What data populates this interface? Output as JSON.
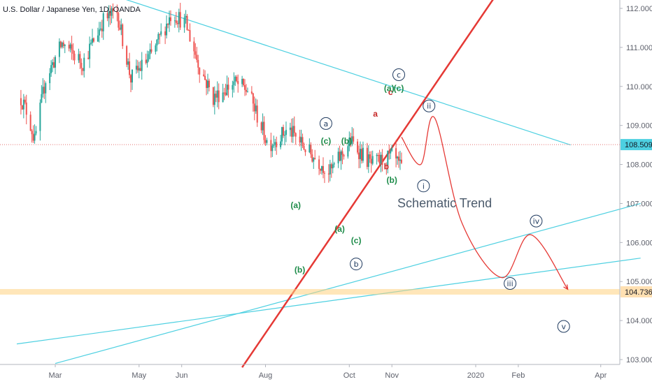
{
  "chart_data": {
    "type": "candlestick",
    "title": "U.S. Dollar / Japanese Yen, 1D, OANDA",
    "x_axis": {
      "labels": [
        "Mar",
        "May",
        "Jun",
        "Aug",
        "Oct",
        "Nov",
        "2020",
        "Feb",
        "Apr"
      ],
      "label_dates": [
        "2019-03-01",
        "2019-05-01",
        "2019-06-01",
        "2019-08-01",
        "2019-10-01",
        "2019-11-01",
        "2020-01-01",
        "2020-02-01",
        "2020-04-01"
      ]
    },
    "y_axis": {
      "min": 103.0,
      "max": 112.0,
      "ticks": [
        "112.000",
        "111.000",
        "110.000",
        "109.000",
        "108.000",
        "107.000",
        "106.000",
        "105.000",
        "104.000",
        "103.000"
      ]
    },
    "price_labels": [
      {
        "value": 108.509,
        "text": "108.509",
        "color": "#4dd0e1",
        "line_color": "#e57373"
      },
      {
        "value": 104.736,
        "text": "104.736",
        "color": "#ffe0b2",
        "line_color": "#ffd180"
      }
    ],
    "candles": {
      "start_date": "2019-02-04",
      "end_date": "2019-11-08",
      "path": [
        [
          0,
          109.7
        ],
        [
          5,
          109.3
        ],
        [
          10,
          108.6
        ],
        [
          18,
          110.2
        ],
        [
          30,
          111.1
        ],
        [
          45,
          110.6
        ],
        [
          60,
          111.7
        ],
        [
          70,
          111.9
        ],
        [
          80,
          110.2
        ],
        [
          95,
          110.8
        ],
        [
          110,
          111.9
        ],
        [
          120,
          111.6
        ],
        [
          130,
          110.5
        ],
        [
          140,
          109.7
        ],
        [
          155,
          110.1
        ],
        [
          165,
          109.9
        ],
        [
          180,
          108.5
        ],
        [
          195,
          108.9
        ],
        [
          210,
          108.3
        ],
        [
          225,
          107.8
        ],
        [
          240,
          108.6
        ],
        [
          255,
          108.0
        ],
        [
          270,
          108.2
        ],
        [
          285,
          107.5
        ],
        [
          300,
          108.9
        ],
        [
          315,
          108.6
        ],
        [
          330,
          108.6
        ],
        [
          345,
          108.1
        ],
        [
          355,
          108.7
        ],
        [
          370,
          109.2
        ],
        [
          380,
          106.8
        ],
        [
          390,
          105.7
        ],
        [
          400,
          105.6
        ],
        [
          410,
          106.3
        ],
        [
          420,
          106.8
        ],
        [
          430,
          106.0
        ],
        [
          438,
          106.5
        ],
        [
          445,
          107.3
        ],
        [
          455,
          107.8
        ],
        [
          465,
          108.3
        ],
        [
          475,
          108.5
        ],
        [
          482,
          107.6
        ],
        [
          490,
          107.2
        ],
        [
          497,
          108.3
        ],
        [
          505,
          106.9
        ],
        [
          515,
          107.7
        ],
        [
          525,
          108.6
        ],
        [
          535,
          108.6
        ],
        [
          545,
          108.8
        ],
        [
          550,
          108.6
        ],
        [
          558,
          108.4
        ],
        [
          565,
          109.3
        ],
        [
          575,
          109.1
        ],
        [
          585,
          108.6
        ]
      ]
    },
    "lines": [
      {
        "type": "trend",
        "name": "upper-descending",
        "color": "#4dd0e1",
        "points": [
          [
            "2019-04-15",
            112.3
          ],
          [
            "2020-03-10",
            108.5
          ]
        ]
      },
      {
        "type": "trend",
        "name": "lower-ascending-1",
        "color": "#4dd0e1",
        "points": [
          [
            "2019-03-01",
            102.9
          ],
          [
            "2020-04-30",
            107.0
          ]
        ]
      },
      {
        "type": "trend",
        "name": "lower-ascending-2",
        "color": "#4dd0e1",
        "points": [
          [
            "2019-02-01",
            103.4
          ],
          [
            "2020-04-30",
            105.6
          ]
        ]
      },
      {
        "type": "trend",
        "name": "red-support",
        "color": "#e53935",
        "points": [
          [
            "2019-07-15",
            102.8
          ],
          [
            "2020-01-15",
            112.3
          ]
        ]
      }
    ],
    "annotations": [
      {
        "text": "a",
        "style": "circled",
        "date": "2019-09-14",
        "value": 109.05
      },
      {
        "text": "(c)",
        "style": "green",
        "date": "2019-09-14",
        "value": 108.6
      },
      {
        "text": "(b)",
        "style": "green",
        "date": "2019-09-29",
        "value": 108.6
      },
      {
        "text": "(a)",
        "style": "green",
        "date": "2019-08-23",
        "value": 106.95
      },
      {
        "text": "(a)",
        "style": "green",
        "date": "2019-09-24",
        "value": 106.35
      },
      {
        "text": "(c)",
        "style": "green",
        "date": "2019-10-06",
        "value": 106.05
      },
      {
        "text": "b",
        "style": "circled",
        "date": "2019-10-06",
        "value": 105.45
      },
      {
        "text": "(b)",
        "style": "green",
        "date": "2019-08-26",
        "value": 105.3
      },
      {
        "text": "a",
        "style": "red",
        "date": "2019-10-20",
        "value": 109.3
      },
      {
        "text": "b",
        "style": "red",
        "date": "2019-10-28",
        "value": 107.95
      },
      {
        "text": "c",
        "style": "red",
        "date": "2019-10-31",
        "value": 109.85
      },
      {
        "text": "(a)",
        "style": "green",
        "date": "2019-10-30",
        "value": 109.95
      },
      {
        "text": "(c)",
        "style": "green",
        "date": "2019-11-06",
        "value": 109.95
      },
      {
        "text": "c",
        "style": "circled",
        "date": "2019-11-06",
        "value": 110.3
      },
      {
        "text": "(b)",
        "style": "green",
        "date": "2019-11-01",
        "value": 107.6
      },
      {
        "text": "ii",
        "style": "circled",
        "date": "2019-11-28",
        "value": 109.5
      },
      {
        "text": "i",
        "style": "circled",
        "date": "2019-11-24",
        "value": 107.45
      },
      {
        "text": "Schematic Trend",
        "style": "plain",
        "date": "2019-11-05",
        "value": 106.9
      },
      {
        "text": "iii",
        "style": "circled",
        "date": "2020-01-26",
        "value": 104.95
      },
      {
        "text": "iv",
        "style": "circled",
        "date": "2020-02-14",
        "value": 106.55
      },
      {
        "text": "v",
        "style": "circled",
        "date": "2020-03-05",
        "value": 103.85
      }
    ],
    "projection": {
      "color": "#e53935",
      "points": [
        [
          "2019-11-08",
          108.7
        ],
        [
          "2019-11-22",
          108.0
        ],
        [
          "2019-12-02",
          109.2
        ],
        [
          "2019-12-22",
          106.5
        ],
        [
          "2020-01-20",
          105.1
        ],
        [
          "2020-02-10",
          106.2
        ],
        [
          "2020-03-08",
          104.8
        ]
      ]
    }
  }
}
